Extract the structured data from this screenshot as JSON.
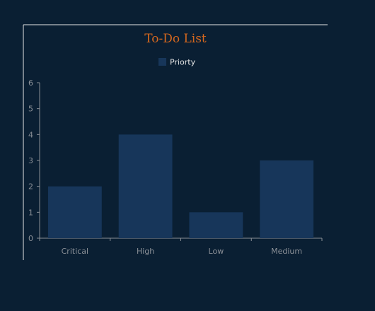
{
  "colors": {
    "background": "#0a1f33",
    "bar": "#17365a",
    "axis": "#8a8f96",
    "frame": "#e6e6e6",
    "title": "#d4671e",
    "text": "#e6e6e6"
  },
  "chart_data": {
    "type": "bar",
    "title": "To-Do List",
    "xlabel": "",
    "ylabel": "",
    "categories": [
      "Critical",
      "High",
      "Low",
      "Medium"
    ],
    "series": [
      {
        "name": "Priorty",
        "values": [
          2,
          4,
          1,
          3
        ]
      }
    ],
    "ylim": [
      0,
      6
    ],
    "yticks": [
      "0",
      "1",
      "2",
      "3",
      "4",
      "5",
      "6"
    ],
    "grid": false,
    "legend_position": "top-center"
  }
}
